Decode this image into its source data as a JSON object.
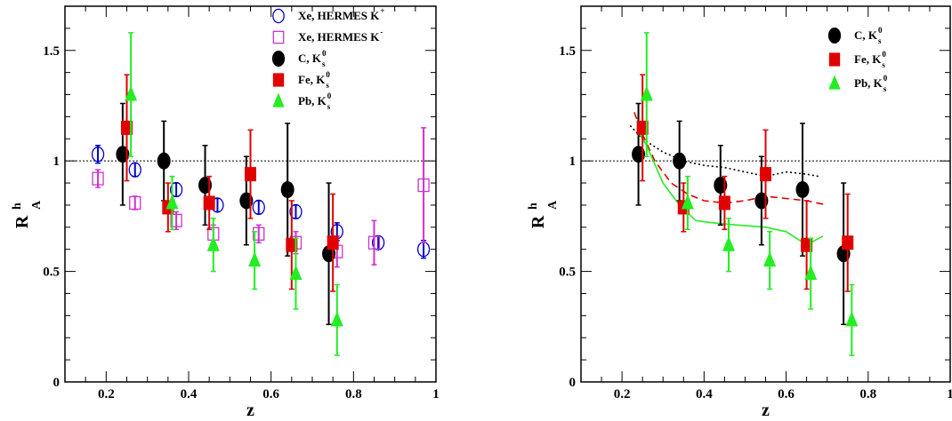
{
  "chart_data": [
    {
      "type": "scatter",
      "title": "",
      "xlabel": "z",
      "ylabel": "R",
      "ylabel_sup": "h",
      "ylabel_sub": "A",
      "xlim": [
        0.1,
        1.0
      ],
      "ylim": [
        0,
        1.7
      ],
      "xticks": [
        0.2,
        0.4,
        0.6,
        0.8,
        1
      ],
      "yticks": [
        0,
        0.5,
        1,
        1.5
      ],
      "xtick_labels": [
        "0.2",
        "0.4",
        "0.6",
        "0.8",
        "1"
      ],
      "ytick_labels": [
        "0",
        "0.5",
        "1",
        "1.5"
      ],
      "reference_line": 1.0,
      "legend_position": "top-right",
      "series": [
        {
          "name": "Xe, HERMES K",
          "name_sup": "+",
          "name_sub": "",
          "marker": "circle-open",
          "color": "#0000cc",
          "points": [
            {
              "x": 0.18,
              "y": 1.03,
              "err": 0.04
            },
            {
              "x": 0.27,
              "y": 0.96,
              "err": 0.03
            },
            {
              "x": 0.37,
              "y": 0.87,
              "err": 0.03
            },
            {
              "x": 0.47,
              "y": 0.8,
              "err": 0.03
            },
            {
              "x": 0.57,
              "y": 0.79,
              "err": 0.03
            },
            {
              "x": 0.66,
              "y": 0.77,
              "err": 0.03
            },
            {
              "x": 0.76,
              "y": 0.68,
              "err": 0.04
            },
            {
              "x": 0.86,
              "y": 0.63,
              "err": 0.03
            },
            {
              "x": 0.97,
              "y": 0.6,
              "err": 0.04
            }
          ]
        },
        {
          "name": "Xe, HERMES K",
          "name_sup": "-",
          "name_sub": "",
          "marker": "square-open",
          "color": "#cc33cc",
          "points": [
            {
              "x": 0.18,
              "y": 0.92,
              "err": 0.04
            },
            {
              "x": 0.27,
              "y": 0.81,
              "err": 0.03
            },
            {
              "x": 0.37,
              "y": 0.73,
              "err": 0.04
            },
            {
              "x": 0.46,
              "y": 0.67,
              "err": 0.04
            },
            {
              "x": 0.57,
              "y": 0.67,
              "err": 0.04
            },
            {
              "x": 0.66,
              "y": 0.63,
              "err": 0.05
            },
            {
              "x": 0.76,
              "y": 0.59,
              "err": 0.07
            },
            {
              "x": 0.85,
              "y": 0.63,
              "err": 0.1
            },
            {
              "x": 0.97,
              "y": 0.89,
              "err": 0.26
            }
          ]
        },
        {
          "name": "C, K",
          "name_sup": "0",
          "name_sub": "s",
          "marker": "circle-filled",
          "color": "#000000",
          "points": [
            {
              "x": 0.24,
              "y": 1.03,
              "err": 0.23
            },
            {
              "x": 0.34,
              "y": 1.0,
              "err": 0.18
            },
            {
              "x": 0.44,
              "y": 0.89,
              "err": 0.18
            },
            {
              "x": 0.54,
              "y": 0.82,
              "err": 0.2
            },
            {
              "x": 0.64,
              "y": 0.87,
              "err": 0.3
            },
            {
              "x": 0.74,
              "y": 0.58,
              "err": 0.32
            }
          ]
        },
        {
          "name": "Fe, K",
          "name_sup": "0",
          "name_sub": "s",
          "marker": "square-filled",
          "color": "#e00000",
          "points": [
            {
              "x": 0.25,
              "y": 1.15,
              "err": 0.24
            },
            {
              "x": 0.35,
              "y": 0.79,
              "err": 0.11
            },
            {
              "x": 0.45,
              "y": 0.81,
              "err": 0.12
            },
            {
              "x": 0.55,
              "y": 0.94,
              "err": 0.2
            },
            {
              "x": 0.65,
              "y": 0.62,
              "err": 0.2
            },
            {
              "x": 0.75,
              "y": 0.63,
              "err": 0.22
            }
          ]
        },
        {
          "name": "Pb, K",
          "name_sup": "0",
          "name_sub": "s",
          "marker": "triangle-filled",
          "color": "#22ee22",
          "points": [
            {
              "x": 0.26,
              "y": 1.3,
              "err": 0.28
            },
            {
              "x": 0.36,
              "y": 0.81,
              "err": 0.12
            },
            {
              "x": 0.46,
              "y": 0.62,
              "err": 0.12
            },
            {
              "x": 0.56,
              "y": 0.55,
              "err": 0.13
            },
            {
              "x": 0.66,
              "y": 0.49,
              "err": 0.16
            },
            {
              "x": 0.76,
              "y": 0.28,
              "err": 0.16
            }
          ]
        }
      ],
      "curves": []
    },
    {
      "type": "scatter",
      "title": "",
      "xlabel": "z",
      "ylabel": "R",
      "ylabel_sup": "h",
      "ylabel_sub": "A",
      "xlim": [
        0.1,
        1.0
      ],
      "ylim": [
        0,
        1.7
      ],
      "xticks": [
        0.2,
        0.4,
        0.6,
        0.8,
        1
      ],
      "yticks": [
        0,
        0.5,
        1,
        1.5
      ],
      "xtick_labels": [
        "0.2",
        "0.4",
        "0.6",
        "0.8",
        "1"
      ],
      "ytick_labels": [
        "0",
        "0.5",
        "1",
        "1.5"
      ],
      "reference_line": 1.0,
      "legend_position": "top-right",
      "series": [
        {
          "name": "C, K",
          "name_sup": "0",
          "name_sub": "s",
          "marker": "circle-filled",
          "color": "#000000",
          "points": [
            {
              "x": 0.24,
              "y": 1.03,
              "err": 0.23
            },
            {
              "x": 0.34,
              "y": 1.0,
              "err": 0.18
            },
            {
              "x": 0.44,
              "y": 0.89,
              "err": 0.18
            },
            {
              "x": 0.54,
              "y": 0.82,
              "err": 0.2
            },
            {
              "x": 0.64,
              "y": 0.87,
              "err": 0.3
            },
            {
              "x": 0.74,
              "y": 0.58,
              "err": 0.32
            }
          ]
        },
        {
          "name": "Fe, K",
          "name_sup": "0",
          "name_sub": "s",
          "marker": "square-filled",
          "color": "#e00000",
          "points": [
            {
              "x": 0.25,
              "y": 1.15,
              "err": 0.24
            },
            {
              "x": 0.35,
              "y": 0.79,
              "err": 0.11
            },
            {
              "x": 0.45,
              "y": 0.81,
              "err": 0.12
            },
            {
              "x": 0.55,
              "y": 0.94,
              "err": 0.2
            },
            {
              "x": 0.65,
              "y": 0.62,
              "err": 0.2
            },
            {
              "x": 0.75,
              "y": 0.63,
              "err": 0.22
            }
          ]
        },
        {
          "name": "Pb, K",
          "name_sup": "0",
          "name_sub": "s",
          "marker": "triangle-filled",
          "color": "#22ee22",
          "points": [
            {
              "x": 0.26,
              "y": 1.3,
              "err": 0.28
            },
            {
              "x": 0.36,
              "y": 0.81,
              "err": 0.12
            },
            {
              "x": 0.46,
              "y": 0.62,
              "err": 0.12
            },
            {
              "x": 0.56,
              "y": 0.55,
              "err": 0.13
            },
            {
              "x": 0.66,
              "y": 0.49,
              "err": 0.16
            },
            {
              "x": 0.76,
              "y": 0.28,
              "err": 0.16
            }
          ]
        }
      ],
      "curves": [
        {
          "style": "dotted",
          "color": "#000000",
          "points": [
            [
              0.22,
              1.16
            ],
            [
              0.25,
              1.1
            ],
            [
              0.3,
              1.04
            ],
            [
              0.35,
              1.0
            ],
            [
              0.4,
              0.98
            ],
            [
              0.45,
              0.97
            ],
            [
              0.5,
              0.95
            ],
            [
              0.55,
              0.93
            ],
            [
              0.6,
              0.95
            ],
            [
              0.65,
              0.94
            ],
            [
              0.68,
              0.93
            ]
          ]
        },
        {
          "style": "dashed",
          "color": "#e00000",
          "points": [
            [
              0.23,
              1.22
            ],
            [
              0.25,
              1.12
            ],
            [
              0.28,
              1.0
            ],
            [
              0.32,
              0.9
            ],
            [
              0.36,
              0.85
            ],
            [
              0.4,
              0.82
            ],
            [
              0.45,
              0.81
            ],
            [
              0.5,
              0.82
            ],
            [
              0.55,
              0.84
            ],
            [
              0.6,
              0.83
            ],
            [
              0.65,
              0.82
            ],
            [
              0.7,
              0.8
            ]
          ]
        },
        {
          "style": "solid",
          "color": "#22ee22",
          "points": [
            [
              0.24,
              1.13
            ],
            [
              0.26,
              1.07
            ],
            [
              0.3,
              0.9
            ],
            [
              0.34,
              0.8
            ],
            [
              0.38,
              0.73
            ],
            [
              0.42,
              0.72
            ],
            [
              0.48,
              0.71
            ],
            [
              0.55,
              0.7
            ],
            [
              0.6,
              0.68
            ],
            [
              0.65,
              0.62
            ],
            [
              0.69,
              0.66
            ]
          ]
        }
      ]
    }
  ]
}
